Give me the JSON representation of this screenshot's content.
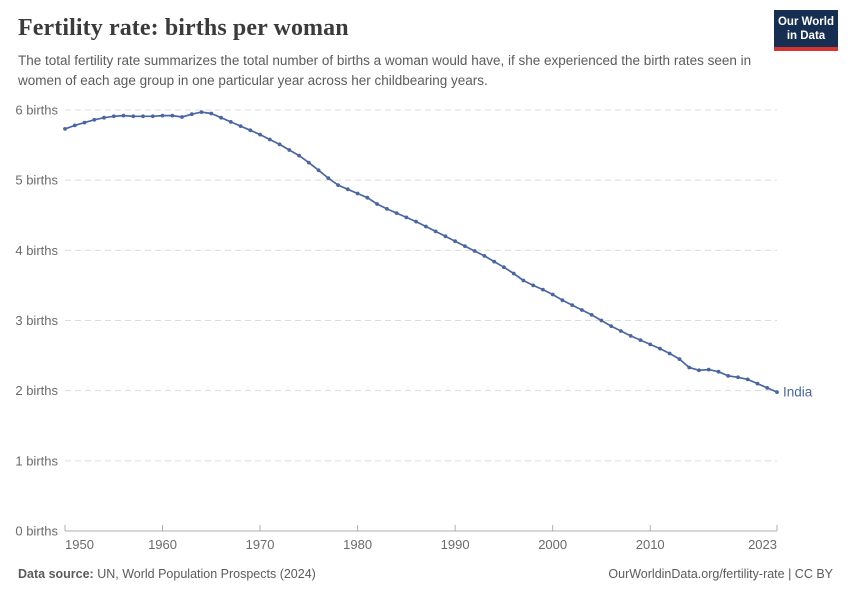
{
  "header": {
    "title": "Fertility rate: births per woman",
    "subtitle": "The total fertility rate summarizes the total number of births a woman would have, if she experienced the birth rates seen in women of each age group in one particular year across her childbearing years."
  },
  "logo": {
    "line1": "Our World",
    "line2": "in Data",
    "bg_color": "#152e52",
    "accent_color": "#d7332f",
    "text_color": "#ffffff"
  },
  "chart_data": {
    "type": "line",
    "title": "Fertility rate: births per woman",
    "entity": "India",
    "xlabel": "",
    "ylabel": "births",
    "xlim": [
      1950,
      2023
    ],
    "ylim": [
      0,
      6
    ],
    "grid": "horizontal-dashed",
    "legend_position": "end-of-line-label",
    "gridline_color": "#dcdcdc",
    "axis_color": "#afafaf",
    "tick_label_color": "#6b6b6b",
    "x_ticks": [
      1950,
      1960,
      1970,
      1980,
      1990,
      2000,
      2010,
      2023
    ],
    "y_tick_labels": [
      "0 births",
      "1 births",
      "2 births",
      "3 births",
      "4 births",
      "5 births",
      "6 births"
    ],
    "x": [
      1950,
      1951,
      1952,
      1953,
      1954,
      1955,
      1956,
      1957,
      1958,
      1959,
      1960,
      1961,
      1962,
      1963,
      1964,
      1965,
      1966,
      1967,
      1968,
      1969,
      1970,
      1971,
      1972,
      1973,
      1974,
      1975,
      1976,
      1977,
      1978,
      1979,
      1980,
      1981,
      1982,
      1983,
      1984,
      1985,
      1986,
      1987,
      1988,
      1989,
      1990,
      1991,
      1992,
      1993,
      1994,
      1995,
      1996,
      1997,
      1998,
      1999,
      2000,
      2001,
      2002,
      2003,
      2004,
      2005,
      2006,
      2007,
      2008,
      2009,
      2010,
      2011,
      2012,
      2013,
      2014,
      2015,
      2016,
      2017,
      2018,
      2019,
      2020,
      2021,
      2022,
      2023
    ],
    "series": [
      {
        "name": "India",
        "color": "#4a66a2",
        "values": [
          5.73,
          5.78,
          5.82,
          5.86,
          5.89,
          5.91,
          5.92,
          5.91,
          5.91,
          5.91,
          5.92,
          5.92,
          5.9,
          5.94,
          5.97,
          5.95,
          5.89,
          5.83,
          5.77,
          5.71,
          5.65,
          5.58,
          5.51,
          5.43,
          5.35,
          5.25,
          5.14,
          5.03,
          4.93,
          4.87,
          4.81,
          4.75,
          4.66,
          4.59,
          4.53,
          4.47,
          4.41,
          4.34,
          4.27,
          4.2,
          4.13,
          4.06,
          3.99,
          3.92,
          3.84,
          3.76,
          3.67,
          3.57,
          3.5,
          3.44,
          3.37,
          3.29,
          3.22,
          3.15,
          3.08,
          3.0,
          2.92,
          2.85,
          2.78,
          2.72,
          2.66,
          2.6,
          2.53,
          2.45,
          2.33,
          2.29,
          2.3,
          2.27,
          2.21,
          2.19,
          2.16,
          2.1,
          2.04,
          1.98
        ]
      }
    ]
  },
  "footer": {
    "source_label": "Data source:",
    "source_text": " UN, World Population Prospects (2024)",
    "right_text": "OurWorldinData.org/fertility-rate | CC BY"
  }
}
